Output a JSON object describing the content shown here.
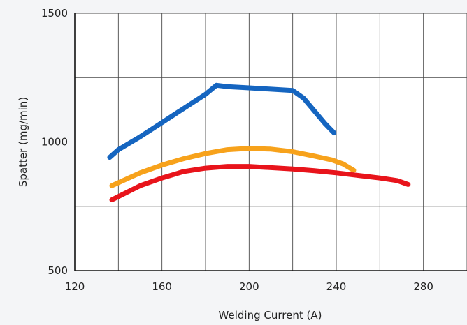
{
  "chart_data": {
    "type": "line",
    "title": "",
    "xlabel": "Welding Current (A)",
    "ylabel": "Spatter (mg/min)",
    "xlim": [
      120,
      300
    ],
    "ylim": [
      500,
      1500
    ],
    "x_ticks": [
      "120",
      "160",
      "200",
      "240",
      "280"
    ],
    "y_ticks": [
      "500",
      "1000",
      "1500"
    ],
    "x_tick_values": [
      120,
      160,
      200,
      240,
      280
    ],
    "y_tick_values": [
      500,
      1000,
      1500
    ],
    "x_grid_values": [
      120,
      140,
      160,
      180,
      200,
      220,
      240,
      260,
      280,
      300
    ],
    "y_grid_values": [
      500,
      750,
      1000,
      1250,
      1500
    ],
    "grid": true,
    "series": [
      {
        "color": "#1565c0",
        "x": [
          136,
          140,
          150,
          160,
          170,
          180,
          185,
          190,
          200,
          210,
          220,
          225,
          230,
          235,
          239
        ],
        "y": [
          940,
          970,
          1020,
          1075,
          1130,
          1185,
          1220,
          1215,
          1210,
          1205,
          1200,
          1170,
          1120,
          1070,
          1035
        ]
      },
      {
        "color": "#f7a21b",
        "x": [
          137,
          150,
          160,
          170,
          180,
          190,
          200,
          210,
          220,
          230,
          238,
          243,
          248
        ],
        "y": [
          830,
          880,
          910,
          935,
          955,
          970,
          975,
          972,
          962,
          945,
          930,
          915,
          890
        ]
      },
      {
        "color": "#e8141b",
        "x": [
          137,
          150,
          160,
          170,
          180,
          190,
          200,
          210,
          220,
          230,
          240,
          250,
          260,
          268,
          273
        ],
        "y": [
          775,
          830,
          860,
          885,
          898,
          905,
          905,
          900,
          895,
          888,
          880,
          870,
          860,
          850,
          835
        ]
      }
    ]
  }
}
